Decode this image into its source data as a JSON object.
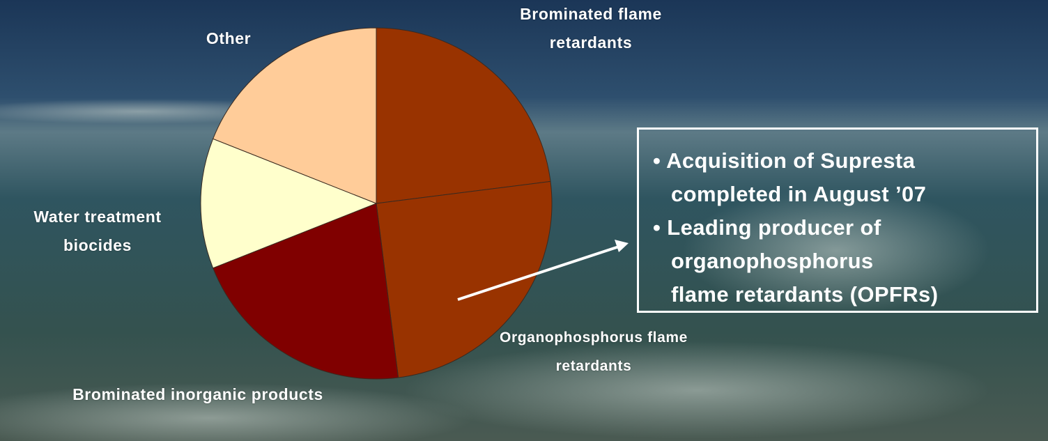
{
  "chart_data": {
    "type": "pie",
    "categories": [
      "Brominated flame retardants",
      "Organophosphorus flame retardants",
      "Brominated inorganic products",
      "Water treatment biocides",
      "Other"
    ],
    "values": [
      23,
      25,
      21,
      12,
      19
    ],
    "colors": [
      "#993300",
      "#993300",
      "#800000",
      "#ffffcc",
      "#ffcc99"
    ],
    "annotation": {
      "lines": [
        "• Acquisition of Supresta",
        "completed in August ’07",
        "• Leading producer of",
        "organophosphorus",
        "flame retardants (OPFRs)"
      ]
    }
  }
}
